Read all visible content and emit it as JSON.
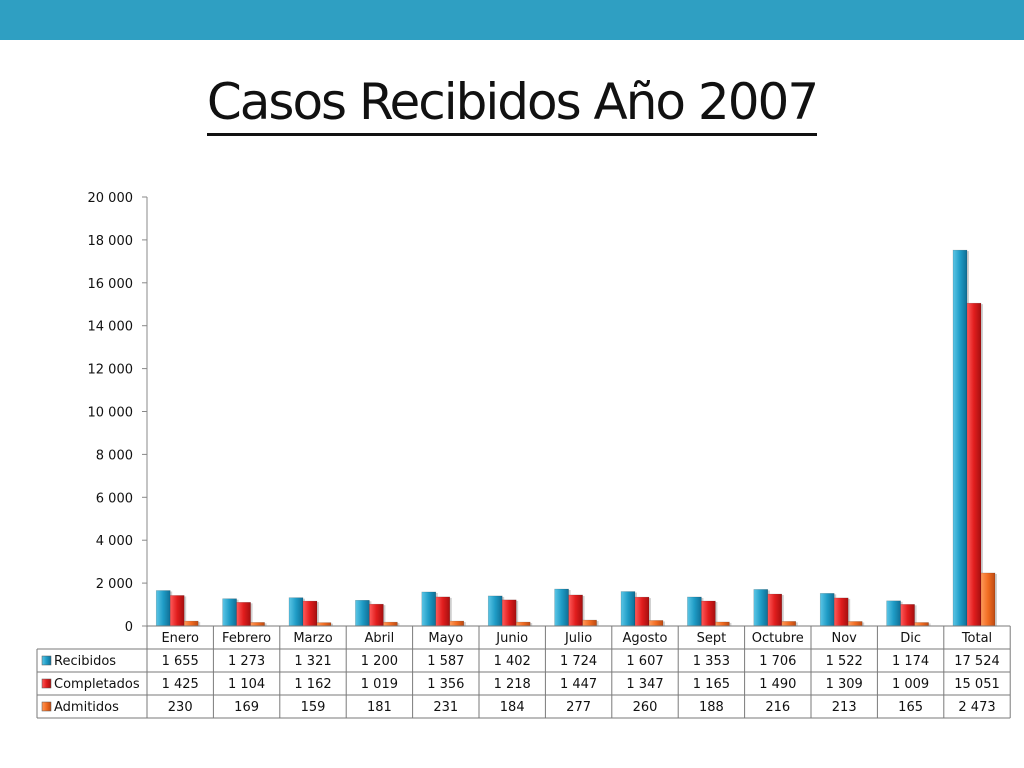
{
  "slide": {
    "title": "Casos Recibidos Año 2007",
    "band_color": "#2f9fc2"
  },
  "chart_data": {
    "type": "bar",
    "categories": [
      "Enero",
      "Febrero",
      "Marzo",
      "Abril",
      "Mayo",
      "Junio",
      "Julio",
      "Agosto",
      "Sept",
      "Octubre",
      "Nov",
      "Dic",
      "Total"
    ],
    "series": [
      {
        "name": "Recibidos",
        "color": "#1f9cc6",
        "values": [
          1655,
          1273,
          1321,
          1200,
          1587,
          1402,
          1724,
          1607,
          1353,
          1706,
          1522,
          1174,
          17524
        ],
        "labels": [
          "1 655",
          "1 273",
          "1 321",
          "1 200",
          "1 587",
          "1 402",
          "1 724",
          "1 607",
          "1 353",
          "1 706",
          "1 522",
          "1 174",
          "17 524"
        ]
      },
      {
        "name": "Completados",
        "color": "#e11d1d",
        "values": [
          1425,
          1104,
          1162,
          1019,
          1356,
          1218,
          1447,
          1347,
          1165,
          1490,
          1309,
          1009,
          15051
        ],
        "labels": [
          "1 425",
          "1 104",
          "1 162",
          "1 019",
          "1 356",
          "1 218",
          "1 447",
          "1 347",
          "1 165",
          "1 490",
          "1 309",
          "1 009",
          "15 051"
        ]
      },
      {
        "name": "Admitidos",
        "color": "#f26c22",
        "values": [
          230,
          169,
          159,
          181,
          231,
          184,
          277,
          260,
          188,
          216,
          213,
          165,
          2473
        ],
        "labels": [
          "230",
          "169",
          "159",
          "181",
          "231",
          "184",
          "277",
          "260",
          "188",
          "216",
          "213",
          "165",
          "2 473"
        ]
      }
    ],
    "ylim": [
      0,
      20000
    ],
    "yticks": [
      0,
      2000,
      4000,
      6000,
      8000,
      10000,
      12000,
      14000,
      16000,
      18000,
      20000
    ],
    "ytick_labels": [
      "0",
      "2 000",
      "4 000",
      "6 000",
      "8 000",
      "10 000",
      "12 000",
      "14 000",
      "16 000",
      "18 000",
      "20 000"
    ],
    "grid": false,
    "legend": "data-table"
  }
}
